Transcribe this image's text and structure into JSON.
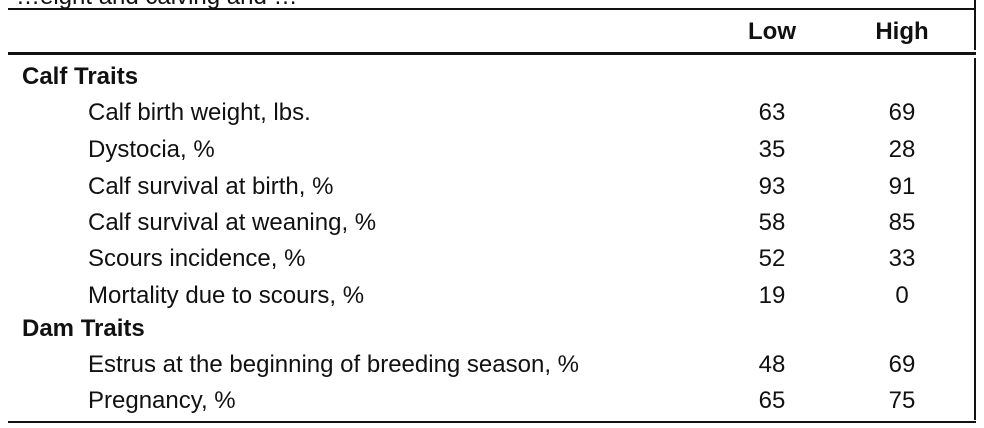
{
  "table": {
    "clipped_header_text": "…eight and calving and …",
    "headers": {
      "low": "Low",
      "high": "High"
    },
    "sections": [
      {
        "title": "Calf Traits",
        "rows": [
          {
            "label": "Calf birth weight, lbs.",
            "low": "63",
            "high": "69"
          },
          {
            "label": "Dystocia, %",
            "low": "35",
            "high": "28"
          },
          {
            "label": "Calf survival at birth, %",
            "low": "93",
            "high": "91"
          },
          {
            "label": "Calf survival at weaning, %",
            "low": "58",
            "high": "85"
          },
          {
            "label": "Scours incidence, %",
            "low": "52",
            "high": "33"
          },
          {
            "label": "Mortality due to scours, %",
            "low": "19",
            "high": "0"
          }
        ]
      },
      {
        "title": "Dam Traits",
        "rows": [
          {
            "label": "Estrus at the beginning of breeding season, %",
            "low": "48",
            "high": "69"
          },
          {
            "label": "Pregnancy, %",
            "low": "65",
            "high": "75"
          }
        ]
      }
    ]
  }
}
